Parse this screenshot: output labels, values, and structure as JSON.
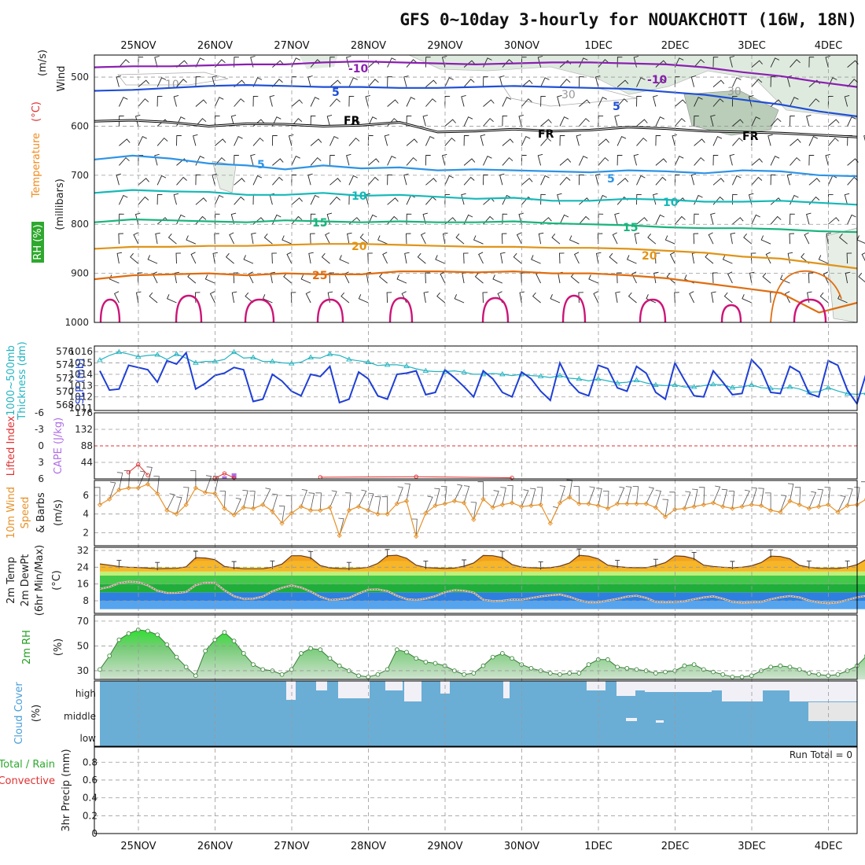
{
  "title": "GFS 0~10day 3-hourly for NOUAKCHOTT (16W, 18N)",
  "dates": [
    "25NOV",
    "26NOV",
    "27NOV",
    "28NOV",
    "29NOV",
    "30NOV",
    "1DEC",
    "2DEC",
    "3DEC",
    "4DEC"
  ],
  "colors": {
    "purple": "#8a1fb0",
    "blue": "#1f4fd6",
    "black": "#000000",
    "skyblue": "#2e94e6",
    "teal": "#16b8b8",
    "green": "#18b47c",
    "orange": "#e09418",
    "darkorange": "#e06d10",
    "magenta": "#cc1477",
    "slp": "#1f3fd6",
    "thickness": "#23b4c0",
    "li": "#e03030",
    "cape": "#b06fe6",
    "wind10": "#e6922a",
    "temp": "#f08a1c",
    "dew": "#7a6a5a",
    "rh": "#2fcc2f",
    "cloud": "#6aaed6",
    "humid": "#d8e9d5"
  },
  "chart_data": [
    {
      "type": "line",
      "panel": "vertical cross-section",
      "ylabels": [
        "Wind",
        "(m/s)",
        "Temperature",
        "(°C)",
        "RH (%)",
        "(millibars)"
      ],
      "yticks": [
        "500",
        "600",
        "700",
        "800",
        "900",
        "1000"
      ],
      "contour_labels": {
        "temp": [
          "-10",
          "-10",
          "5",
          "5",
          "FR",
          "FR",
          "FR",
          "5",
          "5",
          "10",
          "10",
          "15",
          "15",
          "20",
          "20",
          "25"
        ],
        "rh": [
          "10",
          "30",
          "30"
        ]
      },
      "isotherms": [
        {
          "label": "-10",
          "level": [
            480,
            478,
            478,
            476,
            474,
            474,
            470,
            468,
            470,
            472,
            474,
            472,
            470,
            470,
            472,
            474,
            480,
            490,
            498,
            510,
            520
          ]
        },
        {
          "label": "-5",
          "level": [
            528,
            526,
            522,
            518,
            516,
            518,
            520,
            520,
            522,
            522,
            520,
            518,
            520,
            522,
            524,
            530,
            536,
            546,
            556,
            570,
            580
          ]
        },
        {
          "label": "FR",
          "level": [
            590,
            588,
            592,
            600,
            595,
            596,
            600,
            598,
            592,
            612,
            610,
            606,
            610,
            608,
            602,
            605,
            610,
            612,
            614,
            618,
            622
          ]
        },
        {
          "label": "5",
          "level": [
            668,
            660,
            666,
            676,
            680,
            688,
            680,
            686,
            684,
            690,
            688,
            690,
            692,
            694,
            690,
            692,
            696,
            690,
            692,
            700,
            702
          ]
        },
        {
          "label": "10",
          "level": [
            736,
            730,
            733,
            734,
            740,
            740,
            736,
            742,
            740,
            744,
            748,
            746,
            752,
            752,
            748,
            750,
            754,
            754,
            752,
            756,
            760
          ]
        },
        {
          "label": "15",
          "level": [
            796,
            790,
            792,
            794,
            796,
            792,
            794,
            796,
            794,
            796,
            796,
            794,
            798,
            800,
            802,
            806,
            808,
            808,
            810,
            814,
            816
          ]
        },
        {
          "label": "20",
          "level": [
            850,
            846,
            846,
            844,
            844,
            842,
            840,
            840,
            842,
            844,
            846,
            846,
            848,
            848,
            850,
            854,
            858,
            866,
            870,
            880,
            890
          ]
        },
        {
          "label": "25",
          "level": [
            912,
            904,
            902,
            900,
            904,
            900,
            902,
            902,
            896,
            896,
            898,
            896,
            900,
            900,
            904,
            910,
            920,
            930,
            940,
            980,
            960
          ]
        }
      ]
    },
    {
      "type": "line",
      "panel": "SLP / thickness",
      "ylabels": [
        "1000~500mb",
        "Thickness (dm)",
        "SLP (mb)"
      ],
      "yticks_left": [
        "576",
        "574",
        "572",
        "570",
        "568"
      ],
      "yticks_right": [
        "1016",
        "1015",
        "1014",
        "1013",
        "1012",
        "1011"
      ],
      "series": [
        {
          "name": "SLP",
          "values": [
            1014.3,
            1012.6,
            1012.7,
            1014.8,
            1014.6,
            1014.4,
            1013.3,
            1015.2,
            1014.9,
            1015.9,
            1012.7,
            1013.2,
            1013.9,
            1014.1,
            1014.6,
            1014.4,
            1011.6,
            1011.8,
            1014.0,
            1013.4,
            1012.5,
            1012.1,
            1014.0,
            1013.8,
            1014.7,
            1011.5,
            1011.8,
            1014.2,
            1013.6,
            1012.1,
            1011.8,
            1014.0,
            1014.1,
            1014.3,
            1012.2,
            1012.4,
            1014.4,
            1013.7,
            1012.9,
            1012.0,
            1014.3,
            1013.6,
            1012.4,
            1012.0,
            1014.2,
            1013.6,
            1012.5,
            1011.7,
            1015.0,
            1013.3,
            1012.4,
            1012.1,
            1014.8,
            1014.5,
            1012.8,
            1012.5,
            1014.7,
            1014.1,
            1012.4,
            1011.8,
            1015.0,
            1013.5,
            1012.1,
            1012.0,
            1014.3,
            1013.3,
            1012.2,
            1012.3,
            1015.3,
            1014.4,
            1012.4,
            1012.3,
            1014.7,
            1014.2,
            1012.3,
            1012.0,
            1015.2,
            1014.8,
            1012.6,
            1011.4,
            1014.2,
            1014.0,
            1012.2,
            1012.3,
            1013.3,
            1012.9,
            1011.1,
            1012.0,
            1013.4,
            1013.9,
            1011.9,
            1012.0
          ]
        },
        {
          "name": "Thickness",
          "values": [
            574.7,
            575.4,
            575.9,
            575.6,
            575.2,
            575.4,
            575.5,
            574.8,
            575.6,
            575.0,
            574.3,
            574.5,
            574.5,
            574.8,
            575.9,
            575.0,
            575.1,
            574.5,
            574.5,
            574.3,
            574.2,
            574.4,
            575.1,
            575.0,
            575.6,
            575.4,
            574.8,
            574.6,
            574.4,
            573.9,
            574.0,
            574.0,
            573.8,
            573.4,
            573.1,
            573.0,
            573.0,
            573.1,
            572.9,
            572.6,
            572.6,
            572.7,
            572.6,
            572.4,
            572.6,
            572.4,
            572.3,
            572.1,
            572.4,
            572.0,
            571.9,
            571.6,
            571.9,
            571.6,
            571.3,
            571.4,
            571.7,
            571.3,
            571.0,
            570.9,
            571.0,
            570.7,
            570.7,
            570.9,
            571.1,
            571.0,
            570.6,
            570.7,
            571.0,
            570.6,
            570.5,
            570.4,
            570.7,
            570.4,
            569.9,
            570.0,
            570.6,
            570.1,
            569.7,
            569.6,
            569.8,
            569.5,
            569.3,
            569.1,
            569.2,
            569.0,
            568.6,
            568.9,
            568.5,
            567.5
          ]
        }
      ]
    },
    {
      "type": "bar",
      "panel": "Lifted Index / CAPE",
      "ylabels": [
        "Lifted Index",
        "CAPE (J/kg)"
      ],
      "yticks_left": [
        "-6",
        "-3",
        "0",
        "3",
        "6"
      ],
      "yticks_right": [
        "176",
        "132",
        "88",
        "44"
      ],
      "li_points": [
        [
          3,
          4.8
        ],
        [
          4,
          3.4
        ],
        [
          5,
          5.3
        ],
        [
          12,
          5.9
        ],
        [
          13,
          5.0
        ],
        [
          14,
          5.8
        ],
        [
          23,
          5.7
        ],
        [
          33,
          5.6
        ],
        [
          43,
          5.8
        ],
        [
          84,
          3.9
        ],
        [
          85,
          2.0
        ],
        [
          86,
          0.3
        ],
        [
          87,
          0.9
        ],
        [
          88,
          4.2
        ]
      ],
      "cape_bars": [
        [
          13,
          7
        ],
        [
          14,
          15
        ],
        [
          84,
          16
        ],
        [
          85,
          105
        ],
        [
          86,
          128
        ]
      ]
    },
    {
      "type": "line",
      "panel": "10m wind",
      "ylabels": [
        "10m Wind",
        "Speed",
        "& Barbs",
        "(m/s)"
      ],
      "yticks": [
        "6",
        "4",
        "2"
      ],
      "values": [
        5.0,
        5.6,
        6.6,
        6.8,
        6.8,
        7.2,
        6.2,
        4.4,
        4.0,
        5.0,
        6.8,
        6.3,
        6.2,
        4.6,
        3.9,
        4.7,
        4.6,
        5.0,
        4.3,
        3.0,
        4.1,
        4.8,
        4.4,
        4.4,
        4.7,
        1.7,
        4.4,
        4.8,
        4.4,
        4.0,
        4.0,
        5.1,
        5.4,
        1.6,
        4.1,
        4.9,
        5.1,
        5.4,
        5.2,
        3.4,
        5.6,
        4.7,
        5.0,
        5.2,
        4.8,
        4.9,
        5.0,
        3.0,
        5.2,
        5.8,
        5.1,
        5.1,
        4.9,
        4.6,
        5.1,
        5.1,
        5.1,
        5.1,
        4.7,
        3.7,
        4.5,
        4.6,
        4.8,
        5.0,
        5.2,
        4.8,
        4.6,
        4.8,
        5.0,
        4.9,
        4.4,
        4.2,
        5.4,
        5.0,
        4.6,
        4.8,
        5.0,
        4.2,
        4.9,
        5.0,
        5.6,
        6.3,
        6.4,
        6.8,
        6.9,
        6.0,
        5.4,
        5.3,
        5.0,
        5.4
      ]
    },
    {
      "type": "area",
      "panel": "2m temp / dewpoint",
      "ylabels": [
        "2m Temp",
        "2m DewPt",
        "(6hr Min/Max)",
        "(°C)"
      ],
      "yticks": [
        "32",
        "24",
        "16",
        "8"
      ],
      "temp": [
        25.6,
        25.0,
        24.3,
        24.0,
        23.9,
        23.6,
        23.3,
        23.4,
        23.5,
        24.2,
        28.6,
        28.4,
        27.6,
        24.4,
        23.7,
        23.3,
        23.3,
        23.3,
        24.0,
        25.5,
        29.5,
        29.5,
        28.5,
        24.8,
        23.7,
        23.4,
        23.3,
        23.5,
        24.0,
        25.8,
        29.5,
        29.7,
        28.3,
        25.0,
        23.9,
        23.6,
        23.4,
        23.6,
        24.5,
        26.0,
        29.6,
        29.5,
        28.6,
        25.3,
        24.1,
        23.8,
        23.6,
        23.8,
        24.5,
        26.0,
        29.7,
        29.3,
        28.0,
        25.0,
        24.3,
        23.9,
        23.8,
        23.8,
        24.8,
        26.2,
        29.4,
        29.2,
        28.1,
        25.0,
        24.4,
        24.0,
        23.8,
        24.0,
        24.7,
        26.2,
        29.3,
        29.1,
        28.0,
        24.9,
        24.0,
        23.5,
        23.4,
        23.4,
        24.0,
        25.2,
        27.9,
        27.8,
        25.8,
        24.0,
        23.2,
        22.8,
        22.8,
        22.9,
        23.0,
        22.6
      ],
      "dew": [
        13.7,
        14.6,
        16.4,
        17.1,
        16.9,
        15.4,
        12.8,
        11.7,
        11.8,
        12.2,
        15.5,
        16.6,
        16.6,
        13.0,
        10.2,
        8.9,
        9.0,
        10.0,
        12.5,
        14.2,
        15.3,
        14.3,
        12.4,
        9.9,
        8.4,
        8.7,
        9.3,
        11.5,
        13.3,
        13.4,
        12.6,
        10.4,
        8.8,
        8.4,
        9.0,
        10.2,
        12.1,
        13.1,
        12.8,
        11.9,
        8.5,
        7.9,
        8.0,
        8.6,
        8.5,
        9.3,
        10.1,
        10.6,
        11.0,
        9.9,
        8.3,
        7.2,
        7.3,
        8.1,
        8.9,
        10.0,
        10.4,
        9.4,
        7.5,
        7.3,
        7.4,
        7.8,
        8.7,
        9.6,
        10.1,
        9.0,
        7.5,
        7.1,
        7.3,
        7.5,
        8.7,
        9.7,
        10.3,
        9.6,
        8.1,
        7.3,
        6.8,
        7.2,
        8.4,
        9.6,
        10.4,
        11.2,
        12.3,
        14.3,
        16.5,
        17.1,
        16.4,
        14.6,
        11.8,
        11.4
      ]
    },
    {
      "type": "area",
      "panel": "2m RH",
      "ylabels": [
        "2m RH",
        "(%)"
      ],
      "yticks": [
        "70",
        "50",
        "30"
      ],
      "values": [
        31,
        42,
        55,
        60,
        63,
        62,
        59,
        51,
        41,
        33,
        26,
        46,
        55,
        61,
        54,
        44,
        35,
        31,
        30,
        27,
        31,
        44,
        48,
        47,
        40,
        34,
        30,
        26,
        25,
        27,
        31,
        47,
        45,
        40,
        37,
        36,
        34,
        30,
        27,
        28,
        34,
        41,
        44,
        40,
        35,
        32,
        30,
        28,
        27,
        28,
        28,
        35,
        39,
        39,
        33,
        32,
        31,
        30,
        28,
        29,
        30,
        34,
        35,
        31,
        29,
        27,
        25,
        25,
        26,
        30,
        33,
        34,
        33,
        31,
        28,
        27,
        26,
        27,
        30,
        34,
        42,
        37,
        34,
        30,
        27,
        29,
        31,
        34,
        51,
        67,
        68,
        57,
        45,
        41
      ],
      "max_value": 72
    },
    {
      "type": "table",
      "panel": "Cloud Cover",
      "ylabels": [
        "Cloud Cover",
        "(%)"
      ],
      "rows": [
        "high",
        "middle",
        "low"
      ]
    },
    {
      "type": "bar",
      "panel": "3hr precip",
      "ylabels": [
        "Total / Rain",
        "Convective",
        "3hr Precip (mm)"
      ],
      "yticks": [
        "0.8",
        "0.6",
        "0.4",
        "0.2",
        "0"
      ],
      "run_total": "Run Total = 0",
      "values": []
    }
  ]
}
